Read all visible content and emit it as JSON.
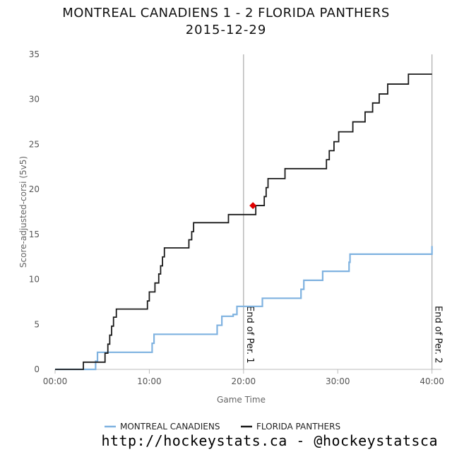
{
  "title": "MONTREAL CANADIENS 1 - 2 FLORIDA PANTHERS",
  "subtitle": "2015-12-29",
  "footer": "http://hockeystats.ca - @hockeystatsca",
  "colors": {
    "montreal": "#7fb2e0",
    "florida": "#1a1a1a",
    "goal_marker": "#e00000",
    "period_line": "#aaaaaa"
  },
  "chart_data": {
    "type": "line",
    "xlabel": "Game Time",
    "ylabel": "Score-adjusted-corsi (5v5)",
    "xlim": [
      0,
      41
    ],
    "ylim": [
      0,
      35
    ],
    "x_ticks": [
      0,
      10,
      20,
      30,
      40
    ],
    "x_tick_labels": [
      "00:00",
      "10:00",
      "20:00",
      "30:00",
      "40:00"
    ],
    "y_ticks": [
      0,
      5,
      10,
      15,
      20,
      25,
      30,
      35
    ],
    "y_tick_labels": [
      "0",
      "5",
      "10",
      "15",
      "20",
      "25",
      "30",
      "35"
    ],
    "grid": false,
    "legend_position": "bottom",
    "series": [
      {
        "name": "MONTREAL CANADIENS",
        "color": "#7fb2e0",
        "x": [
          0,
          4.3,
          4.5,
          10.3,
          10.5,
          17.2,
          17.7,
          18.9,
          19.3,
          22.0,
          26.1,
          26.4,
          28.4,
          31.2,
          31.3,
          40.0,
          40.0
        ],
        "y": [
          0,
          0.9,
          1.9,
          2.9,
          3.9,
          4.9,
          5.9,
          6.1,
          7.0,
          7.9,
          8.9,
          9.9,
          10.9,
          11.9,
          12.8,
          12.8,
          13.7
        ]
      },
      {
        "name": "FLORIDA PANTHERS",
        "color": "#1a1a1a",
        "x": [
          0,
          3.0,
          5.3,
          5.6,
          5.8,
          6.0,
          6.2,
          6.5,
          9.8,
          10.0,
          10.6,
          11.0,
          11.2,
          11.4,
          11.6,
          14.2,
          14.5,
          14.7,
          18.4,
          21.3,
          22.2,
          22.4,
          22.6,
          24.4,
          28.8,
          29.1,
          29.6,
          30.1,
          31.6,
          32.9,
          33.7,
          34.4,
          35.3,
          37.5,
          40.0
        ],
        "y": [
          0,
          0.8,
          1.8,
          2.8,
          3.8,
          4.8,
          5.8,
          6.7,
          7.6,
          8.6,
          9.6,
          10.6,
          11.5,
          12.5,
          13.5,
          14.4,
          15.3,
          16.3,
          17.2,
          18.2,
          19.2,
          20.2,
          21.2,
          22.3,
          23.3,
          24.3,
          25.3,
          26.4,
          27.5,
          28.6,
          29.6,
          30.6,
          31.7,
          32.8,
          32.8
        ]
      }
    ],
    "goal_markers": [
      {
        "x": 21.0,
        "y": 18.2
      }
    ],
    "vertical_lines": [
      {
        "x": 20.0,
        "label": "End of Per. 1"
      },
      {
        "x": 40.0,
        "label": "End of Per. 2"
      }
    ]
  }
}
